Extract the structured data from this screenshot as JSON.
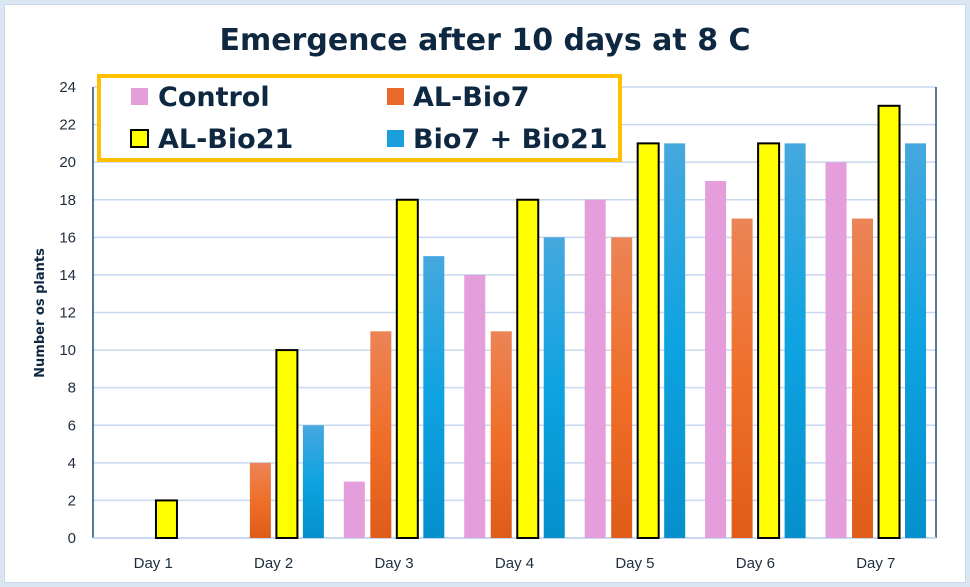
{
  "chart_data": {
    "type": "bar",
    "title": "Emergence after 10 days at 8 C",
    "xlabel": "",
    "ylabel": "Number os plants",
    "ylim": [
      0,
      24
    ],
    "yticks": [
      "0",
      "2",
      "4",
      "6",
      "8",
      "10",
      "12",
      "14",
      "16",
      "18",
      "20",
      "22",
      "24"
    ],
    "grid": true,
    "legend_position": "top-left",
    "categories": [
      "Day 1",
      "Day 2",
      "Day 3",
      "Day 4",
      "Day 5",
      "Day 6",
      "Day 7"
    ],
    "series": [
      {
        "name": "Control",
        "color": "#e39edb",
        "values": [
          0,
          0,
          3,
          14,
          18,
          19,
          20
        ]
      },
      {
        "name": "AL-Bio7",
        "color": "#e8692a",
        "values": [
          0,
          4,
          11,
          11,
          16,
          17,
          17
        ]
      },
      {
        "name": "AL-Bio21",
        "color": "#ffff00",
        "outline": "#000000",
        "values": [
          2,
          10,
          18,
          18,
          21,
          21,
          23
        ]
      },
      {
        "name": "Bio7 + Bio21",
        "color": "#1a9fdc",
        "values": [
          0,
          6,
          15,
          16,
          21,
          21,
          21
        ]
      }
    ]
  },
  "style": {
    "grid_color": "#c6d9f1",
    "axis_color": "#1f4e79",
    "legend_border": "#ffc000"
  }
}
